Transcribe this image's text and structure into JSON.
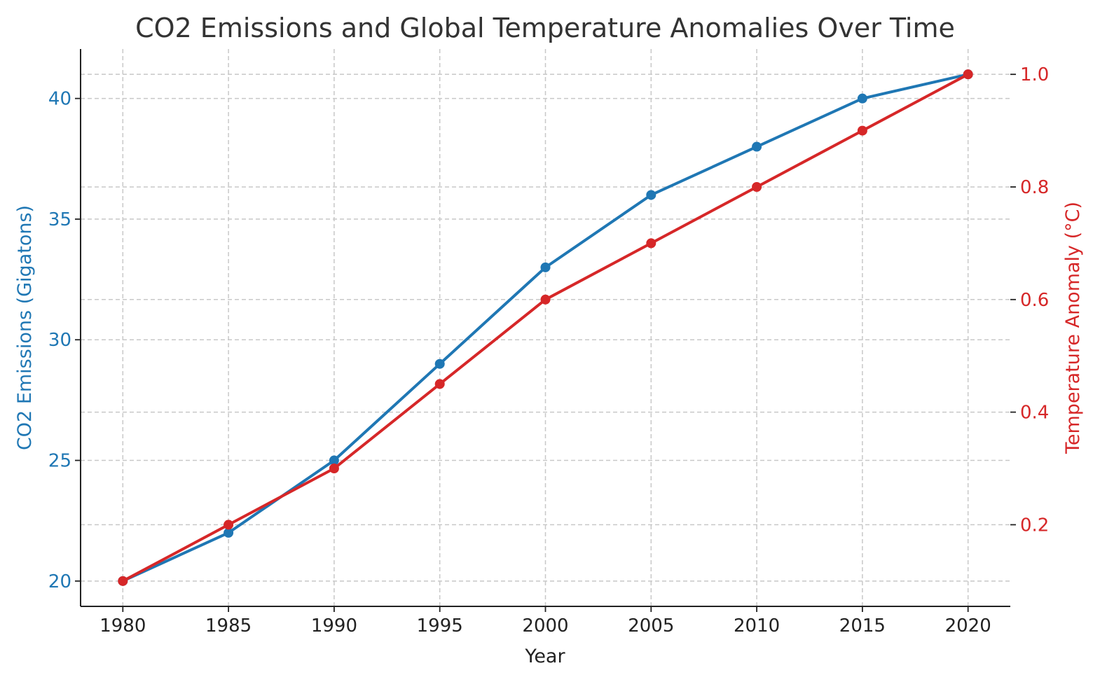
{
  "chart_data": {
    "type": "line",
    "title": "CO2 Emissions and Global Temperature Anomalies Over Time",
    "xlabel": "Year",
    "ylabel_left": "CO2 Emissions (Gigatons)",
    "ylabel_right": "Temperature Anomaly (°C)",
    "x": [
      1980,
      1985,
      1990,
      1995,
      2000,
      2005,
      2010,
      2015,
      2020
    ],
    "x_ticks": [
      "1980",
      "1985",
      "1990",
      "1995",
      "2000",
      "2005",
      "2010",
      "2015",
      "2020"
    ],
    "xlim": [
      1978,
      2022
    ],
    "left_axis": {
      "ylim": [
        18.95,
        42.05
      ],
      "ticks": [
        20,
        25,
        30,
        35,
        40
      ],
      "color": "#1f77b4"
    },
    "right_axis": {
      "ylim": [
        0.055,
        1.045
      ],
      "ticks": [
        "0.2",
        "0.4",
        "0.6",
        "0.8",
        "1.0"
      ],
      "tick_values": [
        0.2,
        0.4,
        0.6,
        0.8,
        1.0
      ],
      "color": "#d62728"
    },
    "series": [
      {
        "axis": "left",
        "color": "#1f77b4",
        "marker": "circle",
        "values": [
          20,
          22,
          25,
          29,
          33,
          36,
          38,
          40,
          41
        ]
      },
      {
        "axis": "right",
        "color": "#d62728",
        "marker": "circle",
        "values": [
          0.1,
          0.2,
          0.3,
          0.45,
          0.6,
          0.7,
          0.8,
          0.9,
          1.0
        ]
      }
    ],
    "grid": true,
    "grid_style": "dashed"
  }
}
